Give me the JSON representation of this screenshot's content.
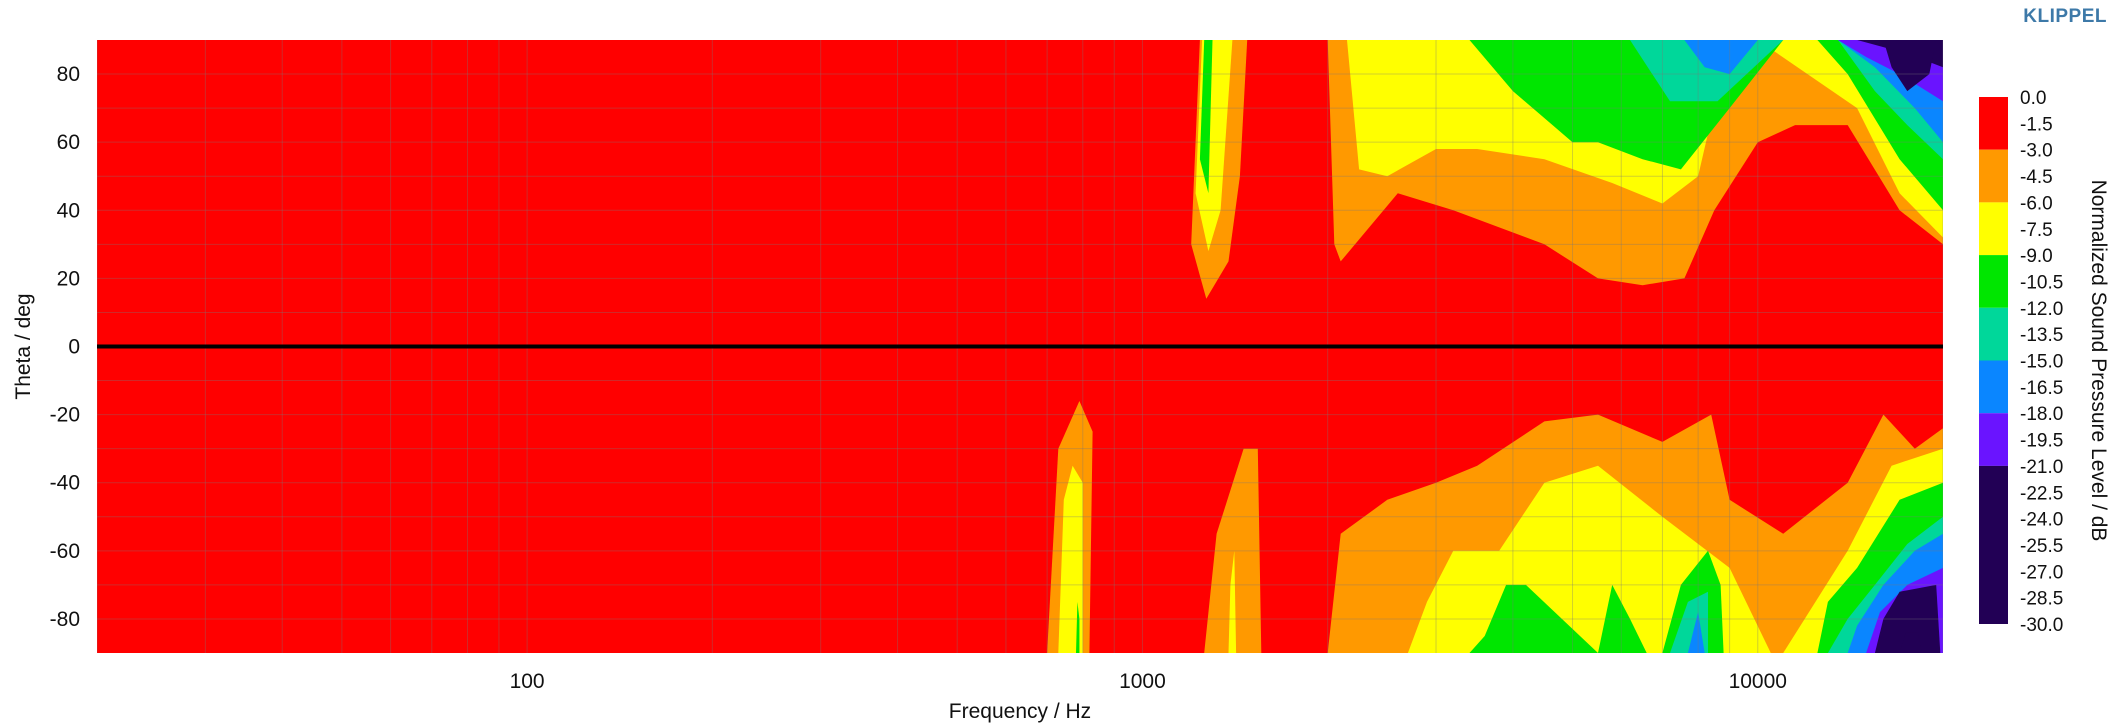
{
  "brand": "KLIPPEL",
  "chart_data": {
    "type": "heatmap",
    "title": "",
    "xlabel": "Frequency / Hz",
    "ylabel": "Theta / deg",
    "colorbar_label": "Normalized Sound Pressure Level / dB",
    "x_scale": "log",
    "xlim": [
      20,
      20000
    ],
    "ylim": [
      -90,
      90
    ],
    "x_ticks": [
      100,
      1000,
      10000
    ],
    "x_tick_labels": [
      "100",
      "1000",
      "10000"
    ],
    "y_ticks": [
      80,
      60,
      40,
      20,
      0,
      -20,
      -40,
      -60,
      -80
    ],
    "y_tick_labels": [
      "80",
      "60",
      "40",
      "20",
      "0",
      "-20",
      "-40",
      "-60",
      "-80"
    ],
    "grid": true,
    "reference_line_theta": 0,
    "colorbar": {
      "levels": [
        "0.0",
        "-1.5",
        "-3.0",
        "-4.5",
        "-6.0",
        "-7.5",
        "-9.0",
        "-10.5",
        "-12.0",
        "-13.5",
        "-15.0",
        "-16.5",
        "-18.0",
        "-19.5",
        "-21.0",
        "-22.5",
        "-24.0",
        "-25.5",
        "-27.0",
        "-28.5",
        "-30.0"
      ],
      "band_colors": [
        "#ff0000",
        "#ff9900",
        "#ffff00",
        "#00e600",
        "#00d79a",
        "#0a86ff",
        "#6a14ff",
        "#220055"
      ],
      "band_edges_db": [
        0,
        -3,
        -6,
        -9,
        -12,
        -15,
        -18,
        -21,
        -30
      ]
    },
    "regions": [
      {
        "level_db": -3,
        "polygon": [
          [
            1200,
            30
          ],
          [
            1240,
            90
          ],
          [
            1480,
            90
          ],
          [
            1440,
            50
          ],
          [
            1380,
            25
          ],
          [
            1270,
            14
          ]
        ]
      },
      {
        "level_db": -6,
        "polygon": [
          [
            1220,
            45
          ],
          [
            1250,
            90
          ],
          [
            1400,
            90
          ],
          [
            1340,
            40
          ],
          [
            1280,
            28
          ]
        ]
      },
      {
        "level_db": -9,
        "polygon": [
          [
            1240,
            55
          ],
          [
            1260,
            90
          ],
          [
            1300,
            90
          ],
          [
            1280,
            45
          ]
        ]
      },
      {
        "level_db": -3,
        "polygon": [
          [
            2000,
            90
          ],
          [
            20000,
            90
          ],
          [
            20000,
            30
          ],
          [
            17000,
            40
          ],
          [
            14000,
            65
          ],
          [
            11500,
            65
          ],
          [
            10000,
            60
          ],
          [
            8500,
            40
          ],
          [
            7600,
            20
          ],
          [
            6500,
            18
          ],
          [
            5500,
            20
          ],
          [
            4500,
            30
          ],
          [
            3200,
            40
          ],
          [
            2600,
            45
          ],
          [
            2100,
            25
          ],
          [
            2050,
            30
          ]
        ]
      },
      {
        "level_db": -6,
        "polygon": [
          [
            2150,
            90
          ],
          [
            20000,
            90
          ],
          [
            20000,
            32
          ],
          [
            17000,
            45
          ],
          [
            14500,
            70
          ],
          [
            10000,
            90
          ],
          [
            9000,
            90
          ],
          [
            8000,
            50
          ],
          [
            7000,
            42
          ],
          [
            5800,
            48
          ],
          [
            4500,
            55
          ],
          [
            3500,
            58
          ],
          [
            3000,
            58
          ],
          [
            2500,
            50
          ],
          [
            2250,
            52
          ]
        ]
      },
      {
        "level_db": -9,
        "polygon": [
          [
            3000,
            90
          ],
          [
            20000,
            90
          ],
          [
            20000,
            40
          ],
          [
            17000,
            55
          ],
          [
            14000,
            80
          ],
          [
            12500,
            90
          ],
          [
            11000,
            90
          ],
          [
            9000,
            70
          ],
          [
            7500,
            52
          ],
          [
            6500,
            55
          ],
          [
            5500,
            60
          ],
          [
            5000,
            60
          ],
          [
            4000,
            75
          ],
          [
            3400,
            90
          ]
        ]
      },
      {
        "level_db": -12,
        "polygon": [
          [
            6200,
            90
          ],
          [
            20000,
            90
          ],
          [
            20000,
            55
          ],
          [
            17500,
            65
          ],
          [
            15500,
            75
          ],
          [
            13500,
            90
          ],
          [
            11000,
            90
          ],
          [
            8600,
            72
          ],
          [
            7200,
            72
          ]
        ]
      },
      {
        "level_db": -15,
        "polygon": [
          [
            7600,
            90
          ],
          [
            20000,
            90
          ],
          [
            20000,
            60
          ],
          [
            18000,
            70
          ],
          [
            15500,
            82
          ],
          [
            13500,
            90
          ],
          [
            10000,
            90
          ],
          [
            9000,
            80
          ],
          [
            8200,
            82
          ]
        ]
      },
      {
        "level_db": -18,
        "polygon": [
          [
            13500,
            90
          ],
          [
            20000,
            90
          ],
          [
            20000,
            72
          ],
          [
            17000,
            80
          ],
          [
            15000,
            85
          ]
        ]
      },
      {
        "level_db": -21,
        "polygon": [
          [
            14500,
            90
          ],
          [
            20000,
            90
          ],
          [
            20000,
            82
          ],
          [
            17500,
            86
          ]
        ]
      },
      {
        "level_db": -24,
        "polygon": [
          [
            16000,
            90
          ],
          [
            19500,
            90
          ],
          [
            19000,
            80
          ],
          [
            17500,
            75
          ],
          [
            16500,
            82
          ]
        ]
      },
      {
        "level_db": -3,
        "polygon": [
          [
            700,
            -90
          ],
          [
            820,
            -90
          ],
          [
            830,
            -25
          ],
          [
            790,
            -16
          ],
          [
            730,
            -30
          ]
        ]
      },
      {
        "level_db": -6,
        "polygon": [
          [
            730,
            -90
          ],
          [
            800,
            -90
          ],
          [
            800,
            -40
          ],
          [
            770,
            -35
          ],
          [
            745,
            -45
          ]
        ]
      },
      {
        "level_db": -9,
        "polygon": [
          [
            780,
            -90
          ],
          [
            790,
            -90
          ],
          [
            790,
            -80
          ],
          [
            784,
            -75
          ]
        ]
      },
      {
        "level_db": -3,
        "polygon": [
          [
            1260,
            -90
          ],
          [
            1560,
            -90
          ],
          [
            1540,
            -30
          ],
          [
            1460,
            -30
          ],
          [
            1320,
            -55
          ]
        ]
      },
      {
        "level_db": -6,
        "polygon": [
          [
            1380,
            -90
          ],
          [
            1420,
            -90
          ],
          [
            1410,
            -60
          ],
          [
            1390,
            -70
          ]
        ]
      },
      {
        "level_db": -3,
        "polygon": [
          [
            2000,
            -90
          ],
          [
            20000,
            -90
          ],
          [
            20000,
            -24
          ],
          [
            18000,
            -30
          ],
          [
            16000,
            -20
          ],
          [
            14000,
            -40
          ],
          [
            11000,
            -55
          ],
          [
            9000,
            -45
          ],
          [
            8400,
            -20
          ],
          [
            7000,
            -28
          ],
          [
            5500,
            -20
          ],
          [
            4500,
            -22
          ],
          [
            3500,
            -35
          ],
          [
            3000,
            -40
          ],
          [
            2500,
            -45
          ],
          [
            2100,
            -55
          ]
        ]
      },
      {
        "level_db": -6,
        "polygon": [
          [
            2700,
            -90
          ],
          [
            20000,
            -90
          ],
          [
            20000,
            -30
          ],
          [
            16500,
            -35
          ],
          [
            14000,
            -60
          ],
          [
            11000,
            -90
          ],
          [
            10500,
            -90
          ],
          [
            9000,
            -65
          ],
          [
            7000,
            -50
          ],
          [
            5500,
            -35
          ],
          [
            4500,
            -40
          ],
          [
            3800,
            -60
          ],
          [
            3200,
            -60
          ],
          [
            2900,
            -75
          ]
        ]
      },
      {
        "level_db": -9,
        "polygon": [
          [
            3400,
            -90
          ],
          [
            3600,
            -85
          ],
          [
            3900,
            -70
          ],
          [
            4200,
            -70
          ],
          [
            5500,
            -90
          ]
        ]
      },
      {
        "level_db": -9,
        "polygon": [
          [
            5500,
            -90
          ],
          [
            5800,
            -70
          ],
          [
            6200,
            -80
          ],
          [
            6600,
            -90
          ]
        ]
      },
      {
        "level_db": -9,
        "polygon": [
          [
            7000,
            -90
          ],
          [
            7500,
            -70
          ],
          [
            8300,
            -60
          ],
          [
            8700,
            -70
          ],
          [
            8800,
            -90
          ]
        ]
      },
      {
        "level_db": -9,
        "polygon": [
          [
            12500,
            -90
          ],
          [
            20000,
            -90
          ],
          [
            20000,
            -40
          ],
          [
            17000,
            -45
          ],
          [
            14500,
            -65
          ],
          [
            13000,
            -75
          ]
        ]
      },
      {
        "level_db": -12,
        "polygon": [
          [
            7200,
            -90
          ],
          [
            7700,
            -75
          ],
          [
            8300,
            -72
          ],
          [
            8300,
            -90
          ]
        ]
      },
      {
        "level_db": -12,
        "polygon": [
          [
            13000,
            -90
          ],
          [
            20000,
            -90
          ],
          [
            20000,
            -50
          ],
          [
            17500,
            -58
          ],
          [
            15500,
            -70
          ],
          [
            14000,
            -80
          ]
        ]
      },
      {
        "level_db": -15,
        "polygon": [
          [
            7700,
            -90
          ],
          [
            8000,
            -78
          ],
          [
            8200,
            -90
          ]
        ]
      },
      {
        "level_db": -15,
        "polygon": [
          [
            14000,
            -90
          ],
          [
            20000,
            -90
          ],
          [
            20000,
            -55
          ],
          [
            18000,
            -60
          ],
          [
            16000,
            -70
          ],
          [
            14500,
            -82
          ]
        ]
      },
      {
        "level_db": -18,
        "polygon": [
          [
            15000,
            -90
          ],
          [
            20000,
            -90
          ],
          [
            20000,
            -65
          ],
          [
            17500,
            -70
          ],
          [
            15800,
            -78
          ]
        ]
      },
      {
        "level_db": -21,
        "polygon": [
          [
            15500,
            -90
          ],
          [
            19800,
            -90
          ],
          [
            19500,
            -70
          ],
          [
            17000,
            -72
          ],
          [
            16000,
            -80
          ]
        ]
      },
      {
        "level_db": -24,
        "polygon": [
          [
            17000,
            -90
          ],
          [
            18500,
            -90
          ],
          [
            18200,
            -84
          ],
          [
            17400,
            -84
          ]
        ]
      }
    ]
  }
}
